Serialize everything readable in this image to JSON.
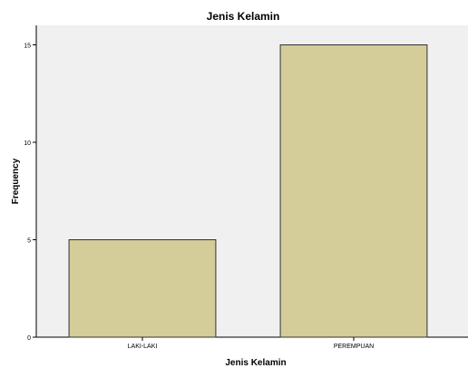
{
  "chart_data": {
    "type": "bar",
    "title": "Jenis Kelamin",
    "xlabel": "Jenis Kelamin",
    "ylabel": "Frequency",
    "categories": [
      "LAKI-LAKI",
      "PEREMPUAN"
    ],
    "values": [
      5,
      15
    ],
    "ylim": [
      0,
      16
    ],
    "yticks": [
      "0",
      "5",
      "10",
      "15"
    ],
    "grid": false,
    "bar_color": "#d4cc99",
    "bar_edge_color": "#333333",
    "plot_background": "#f0f0f0"
  }
}
